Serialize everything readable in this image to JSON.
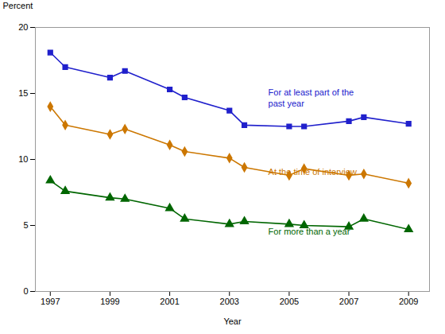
{
  "chart_data": {
    "type": "line",
    "xlabel": "Year",
    "ylabel": "Percent",
    "x": [
      1997,
      1997.5,
      1999,
      1999.5,
      2001,
      2001.5,
      2003,
      2003.5,
      2005,
      2005.5,
      2007,
      2007.5,
      2009
    ],
    "series": [
      {
        "color": "#2020cc",
        "marker": "square",
        "values": [
          18.1,
          17.0,
          16.2,
          16.7,
          15.3,
          14.7,
          13.7,
          12.6,
          12.5,
          12.5,
          12.9,
          13.2,
          12.7
        ]
      },
      {
        "color": "#cc7700",
        "marker": "diamond",
        "values": [
          14.0,
          12.6,
          11.9,
          12.3,
          11.1,
          10.6,
          10.1,
          9.4,
          8.8,
          9.3,
          8.8,
          8.9,
          8.2
        ]
      },
      {
        "color": "#006600",
        "marker": "triangle",
        "values": [
          8.4,
          7.6,
          7.1,
          7.0,
          6.3,
          5.5,
          5.1,
          5.3,
          5.1,
          5.0,
          4.9,
          5.5,
          4.7
        ]
      }
    ],
    "annotations": [
      {
        "text": "For at least part of the",
        "x": 2004.3,
        "y": 15.3,
        "color": "#2020cc"
      },
      {
        "text": "past year",
        "x": 2004.3,
        "y": 14.5,
        "color": "#2020cc"
      },
      {
        "text": "At the time of interview",
        "x": 2004.3,
        "y": 9.3,
        "color": "#cc7700"
      },
      {
        "text": "For more than a year",
        "x": 2004.3,
        "y": 4.8,
        "color": "#006600"
      }
    ],
    "xlim": [
      1996.5,
      2009.7
    ],
    "xticks": [
      1997,
      1999,
      2001,
      2003,
      2005,
      2007,
      2009
    ],
    "ylim": [
      0,
      20
    ],
    "yticks": [
      0,
      5,
      10,
      15,
      20
    ],
    "grid": false
  }
}
